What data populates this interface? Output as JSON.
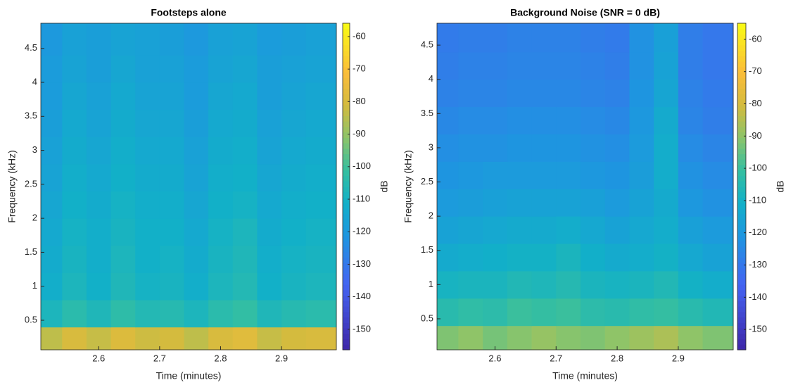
{
  "chart_data": [
    {
      "type": "heatmap",
      "title": "Footsteps alone",
      "xlabel": "Time (minutes)",
      "ylabel": "Frequency (kHz)",
      "colorbar_label": "dB",
      "colormap": "parula",
      "x": [
        2.52,
        2.56,
        2.6,
        2.64,
        2.68,
        2.72,
        2.76,
        2.8,
        2.84,
        2.88,
        2.92,
        2.96
      ],
      "y": [
        0.2,
        0.6,
        1.0,
        1.4,
        1.8,
        2.2,
        2.6,
        3.0,
        3.4,
        3.8,
        4.2,
        4.6
      ],
      "z": [
        [
          -84,
          -80,
          -83,
          -79,
          -82,
          -81,
          -84,
          -80,
          -78,
          -83,
          -81,
          -80
        ],
        [
          -108,
          -104,
          -107,
          -103,
          -106,
          -105,
          -108,
          -104,
          -102,
          -107,
          -105,
          -104
        ],
        [
          -112,
          -108,
          -111,
          -107,
          -110,
          -109,
          -112,
          -108,
          -106,
          -111,
          -109,
          -108
        ],
        [
          -113,
          -109,
          -112,
          -108,
          -111,
          -110,
          -113,
          -109,
          -107,
          -112,
          -110,
          -109
        ],
        [
          -114,
          -110,
          -112,
          -109,
          -111,
          -111,
          -114,
          -110,
          -108,
          -113,
          -111,
          -110
        ],
        [
          -115,
          -111,
          -113,
          -110,
          -112,
          -112,
          -115,
          -111,
          -110,
          -114,
          -112,
          -111
        ],
        [
          -116,
          -112,
          -114,
          -111,
          -113,
          -113,
          -116,
          -112,
          -111,
          -115,
          -113,
          -112
        ],
        [
          -117,
          -113,
          -115,
          -112,
          -114,
          -114,
          -117,
          -113,
          -112,
          -116,
          -114,
          -113
        ],
        [
          -118,
          -114,
          -116,
          -113,
          -115,
          -115,
          -118,
          -114,
          -113,
          -117,
          -115,
          -114
        ],
        [
          -119,
          -115,
          -117,
          -114,
          -116,
          -116,
          -119,
          -115,
          -114,
          -118,
          -116,
          -115
        ],
        [
          -119,
          -116,
          -118,
          -115,
          -117,
          -117,
          -119,
          -116,
          -115,
          -118,
          -117,
          -116
        ],
        [
          -120,
          -117,
          -118,
          -116,
          -117,
          -118,
          -120,
          -117,
          -116,
          -119,
          -118,
          -117
        ]
      ],
      "xlim": [
        2.505,
        2.99
      ],
      "ylim": [
        0.065,
        4.87
      ],
      "clim": [
        -156.3,
        -55.9
      ],
      "xticks": [
        2.6,
        2.7,
        2.8,
        2.9
      ],
      "yticks": [
        0.5,
        1,
        1.5,
        2,
        2.5,
        3,
        3.5,
        4,
        4.5
      ],
      "cticks": [
        -150,
        -140,
        -130,
        -120,
        -110,
        -100,
        -90,
        -80,
        -70,
        -60
      ]
    },
    {
      "type": "heatmap",
      "title": "Background Noise (SNR = 0 dB)",
      "xlabel": "Time (minutes)",
      "ylabel": "Frequency (kHz)",
      "colorbar_label": "dB",
      "colormap": "parula",
      "x": [
        2.52,
        2.56,
        2.6,
        2.64,
        2.68,
        2.72,
        2.76,
        2.8,
        2.84,
        2.88,
        2.92,
        2.96
      ],
      "y": [
        0.2,
        0.6,
        1.0,
        1.4,
        1.8,
        2.2,
        2.6,
        3.0,
        3.4,
        3.8,
        4.2,
        4.6
      ],
      "z": [
        [
          -92,
          -90,
          -93,
          -91,
          -89,
          -91,
          -92,
          -90,
          -88,
          -86,
          -90,
          -92
        ],
        [
          -104,
          -102,
          -103,
          -100,
          -101,
          -100,
          -103,
          -104,
          -102,
          -101,
          -104,
          -106
        ],
        [
          -109,
          -108,
          -108,
          -106,
          -107,
          -105,
          -108,
          -109,
          -108,
          -106,
          -110,
          -112
        ],
        [
          -113,
          -112,
          -111,
          -110,
          -110,
          -108,
          -111,
          -113,
          -112,
          -110,
          -114,
          -116
        ],
        [
          -116,
          -115,
          -114,
          -113,
          -113,
          -112,
          -114,
          -116,
          -114,
          -112,
          -117,
          -119
        ],
        [
          -119,
          -118,
          -117,
          -116,
          -116,
          -116,
          -117,
          -119,
          -116,
          -113,
          -120,
          -122
        ],
        [
          -121,
          -120,
          -119,
          -119,
          -119,
          -119,
          -120,
          -121,
          -118,
          -112,
          -122,
          -124
        ],
        [
          -123,
          -122,
          -122,
          -121,
          -121,
          -121,
          -122,
          -123,
          -119,
          -112,
          -124,
          -126
        ],
        [
          -125,
          -124,
          -124,
          -123,
          -123,
          -123,
          -124,
          -125,
          -120,
          -113,
          -126,
          -128
        ],
        [
          -127,
          -126,
          -126,
          -125,
          -125,
          -125,
          -126,
          -127,
          -121,
          -115,
          -127,
          -129
        ],
        [
          -128,
          -127,
          -127,
          -126,
          -126,
          -126,
          -127,
          -128,
          -122,
          -116,
          -128,
          -130
        ],
        [
          -129,
          -128,
          -128,
          -127,
          -127,
          -127,
          -128,
          -129,
          -122,
          -117,
          -128,
          -130
        ]
      ],
      "xlim": [
        2.505,
        2.99
      ],
      "ylim": [
        0.047,
        4.82
      ],
      "clim": [
        -156.3,
        -55
      ],
      "xticks": [
        2.6,
        2.7,
        2.8,
        2.9
      ],
      "yticks": [
        0.5,
        1,
        1.5,
        2,
        2.5,
        3,
        3.5,
        4,
        4.5
      ],
      "cticks": [
        -150,
        -140,
        -130,
        -120,
        -110,
        -100,
        -90,
        -80,
        -70,
        -60
      ]
    }
  ]
}
